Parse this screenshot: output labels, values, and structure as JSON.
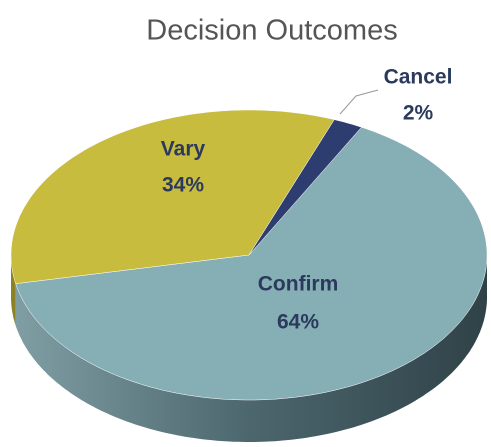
{
  "chart_data": {
    "type": "pie",
    "title": "Decision Outcomes",
    "categories": [
      "Confirm",
      "Vary",
      "Cancel"
    ],
    "values": [
      64,
      34,
      2
    ],
    "value_labels": [
      "64%",
      "34%",
      "2%"
    ],
    "colors": [
      "#85aeb5",
      "#c8bc3f",
      "#2d3d70"
    ]
  }
}
